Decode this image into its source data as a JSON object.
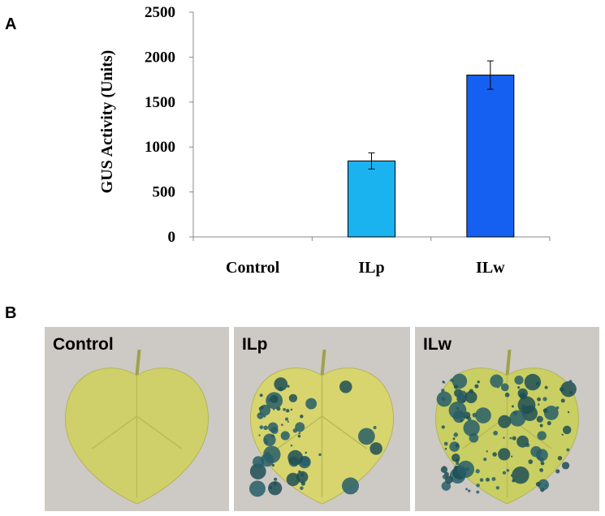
{
  "panels": {
    "a": "A",
    "b": "B"
  },
  "chart_data": {
    "type": "bar",
    "ylabel": "GUS Activity (Units)",
    "categories": [
      "Control",
      "ILp",
      "ILw"
    ],
    "values": [
      0,
      845,
      1800
    ],
    "errors": [
      0,
      90,
      158
    ],
    "colors": [
      "#1ab2ef",
      "#1ab2ef",
      "#1560f0"
    ],
    "ylim": [
      0,
      2500
    ],
    "yticks": [
      0,
      500,
      1000,
      1500,
      2000,
      2500
    ],
    "grid": false
  },
  "photos": [
    {
      "label": "Control"
    },
    {
      "label": "ILp"
    },
    {
      "label": "ILw"
    }
  ]
}
